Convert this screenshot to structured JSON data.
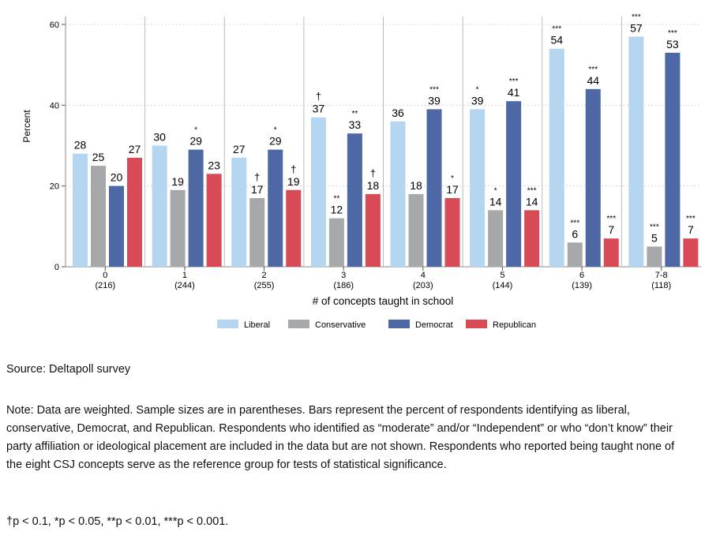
{
  "chart_data": {
    "type": "bar",
    "ylabel": "Percent",
    "xlabel": "# of concepts taught in school",
    "ylim": [
      0,
      60
    ],
    "yticks": [
      0,
      20,
      40,
      60
    ],
    "grid": true,
    "legend_position": "bottom",
    "categories": [
      "0",
      "1",
      "2",
      "3",
      "4",
      "5",
      "6",
      "7-8"
    ],
    "sample_sizes": [
      "(216)",
      "(244)",
      "(255)",
      "(186)",
      "(203)",
      "(144)",
      "(139)",
      "(118)"
    ],
    "series": [
      {
        "name": "Liberal",
        "color": "#b5d6f0",
        "values": [
          28,
          30,
          27,
          37,
          36,
          39,
          54,
          57
        ],
        "sig": [
          "",
          "",
          "",
          "†",
          "",
          "*",
          "***",
          "***"
        ]
      },
      {
        "name": "Conservative",
        "color": "#a6a8ab",
        "values": [
          25,
          19,
          17,
          12,
          18,
          14,
          6,
          5
        ],
        "sig": [
          "",
          "",
          "†",
          "**",
          "",
          "*",
          "***",
          "***"
        ]
      },
      {
        "name": "Democrat",
        "color": "#4e68a6",
        "values": [
          20,
          29,
          29,
          33,
          39,
          41,
          44,
          53
        ],
        "sig": [
          "",
          "*",
          "*",
          "**",
          "***",
          "***",
          "***",
          "***"
        ]
      },
      {
        "name": "Republican",
        "color": "#d94a57",
        "values": [
          27,
          23,
          19,
          18,
          17,
          14,
          7,
          7
        ],
        "sig": [
          "",
          "",
          "†",
          "†",
          "*",
          "***",
          "***",
          "***"
        ]
      }
    ]
  },
  "source": "Source: Deltapoll survey",
  "note": "Note: Data are weighted. Sample sizes are in parentheses. Bars represent the percent of respondents identifying as liberal, conservative, Democrat, and Republican. Respondents who identified as “moderate” and/or “Independent” or who “don’t know” their party affiliation or ideological placement are included in the data but are not shown. Respondents who reported being taught none of the eight CSJ concepts serve as the reference group for tests of statistical significance.",
  "significance": "†p < 0.1, *p < 0.05, **p < 0.01, ***p < 0.001."
}
